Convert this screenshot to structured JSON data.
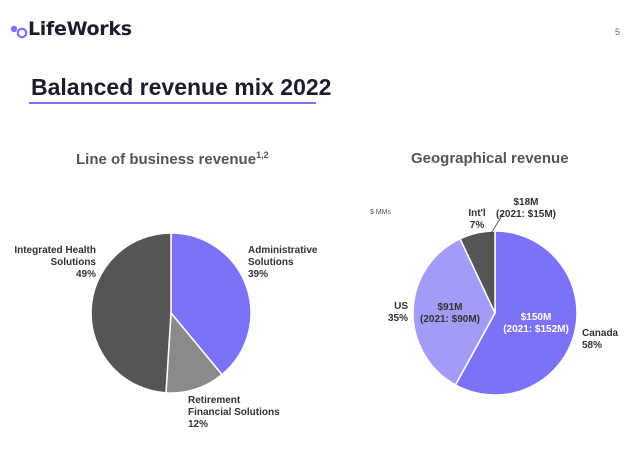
{
  "header": {
    "logo_text": "LifeWorks",
    "page_number": "5",
    "slide_title": "Balanced revenue mix 2022",
    "units_note": "$ MMs"
  },
  "colors": {
    "accent": "#7b72f7",
    "lavender": "#a39cf7",
    "gray": "#8a8a8a",
    "dark_gray": "#555555",
    "dark": "#1d1d2b"
  },
  "chart_data": [
    {
      "type": "pie",
      "title": "Line of business revenue",
      "title_superscript": "1,2",
      "categories": [
        "Administrative Solutions",
        "Retirement Financial Solutions",
        "Integrated Health Solutions"
      ],
      "values": [
        39,
        12,
        49
      ],
      "slice_colors": [
        "#7b72f7",
        "#8a8a8a",
        "#555555"
      ],
      "labels": [
        {
          "lines": [
            "Administrative",
            "Solutions",
            "39%"
          ]
        },
        {
          "lines": [
            "Retirement",
            "Financial Solutions",
            "12%"
          ]
        },
        {
          "lines": [
            "Integrated Health",
            "Solutions",
            "49%"
          ]
        }
      ]
    },
    {
      "type": "pie",
      "title": "Geographical revenue",
      "categories": [
        "Canada",
        "US",
        "Int'l"
      ],
      "values": [
        58,
        35,
        7
      ],
      "amounts": [
        "$150M",
        "$91M",
        "$18M"
      ],
      "prior_year_amounts": [
        "(2021: $152M)",
        "(2021: $90M)",
        "(2021: $15M)"
      ],
      "slice_colors": [
        "#7b72f7",
        "#a39cf7",
        "#555555"
      ],
      "outside_labels": [
        {
          "lines": [
            "Canada",
            "58%"
          ]
        },
        {
          "lines": [
            "US",
            "35%"
          ]
        },
        {
          "lines": [
            "Int'l",
            "7%"
          ]
        }
      ]
    }
  ]
}
